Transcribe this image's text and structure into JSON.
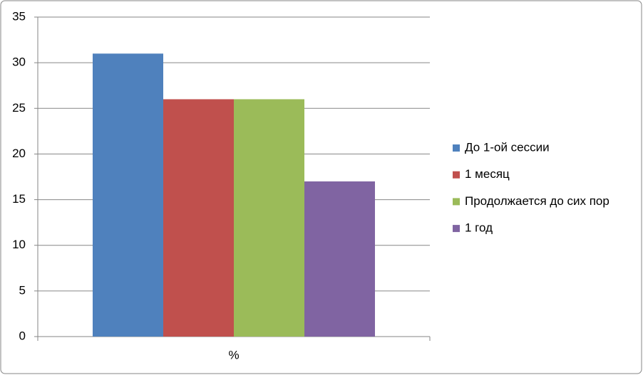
{
  "chart_data": {
    "type": "bar",
    "categories": [
      "%"
    ],
    "series": [
      {
        "name": "До 1-ой сессии",
        "color": "#4f81bd",
        "values": [
          31
        ]
      },
      {
        "name": "1 месяц",
        "color": "#c0504d",
        "values": [
          26
        ]
      },
      {
        "name": "Продолжается до сих пор",
        "color": "#9bbb59",
        "values": [
          26
        ]
      },
      {
        "name": "1 год",
        "color": "#8064a2",
        "values": [
          17
        ]
      }
    ],
    "ylim": [
      0,
      35
    ],
    "yticks": [
      0,
      5,
      10,
      15,
      20,
      25,
      30,
      35
    ],
    "grid": true,
    "legend": "right"
  }
}
